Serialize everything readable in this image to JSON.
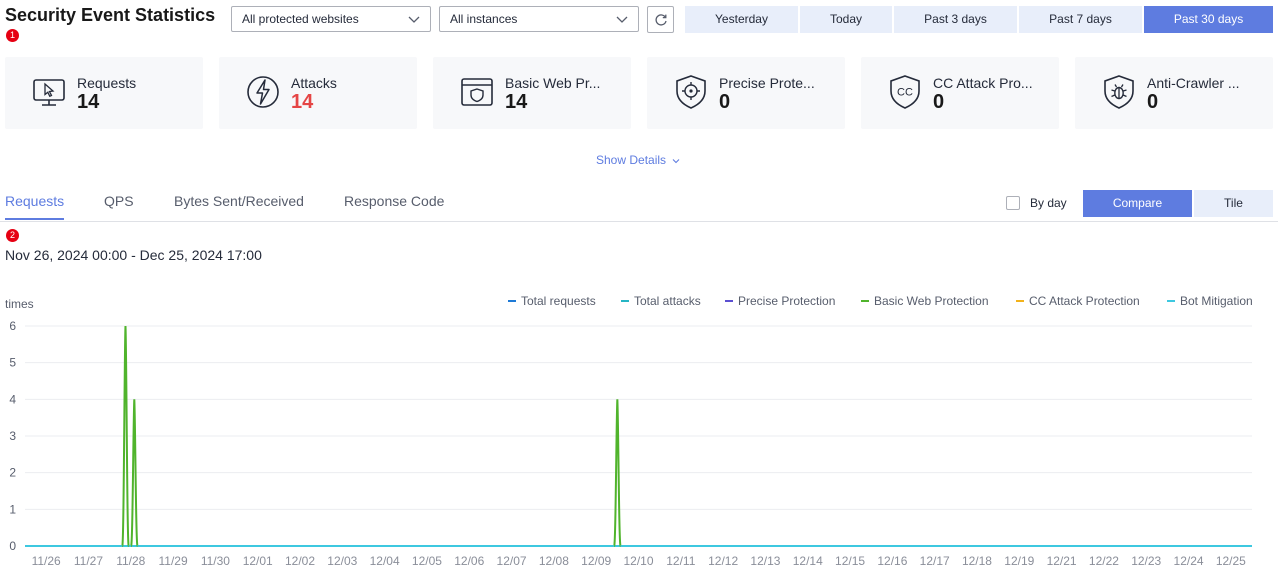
{
  "header": {
    "title": "Security Event Statistics",
    "marker1": "1",
    "website_select": "All protected websites",
    "instance_select": "All instances",
    "ranges": [
      "Yesterday",
      "Today",
      "Past 3 days",
      "Past 7 days",
      "Past 30 days"
    ],
    "active_range": "Past 30 days"
  },
  "cards": [
    {
      "label": "Requests",
      "value": "14",
      "icon": "monitor-cursor-icon"
    },
    {
      "label": "Attacks",
      "value": "14",
      "icon": "lightning-icon"
    },
    {
      "label": "Basic Web Pr...",
      "value": "14",
      "icon": "browser-shield-icon"
    },
    {
      "label": "Precise Prote...",
      "value": "0",
      "icon": "shield-target-icon"
    },
    {
      "label": "CC Attack Pro...",
      "value": "0",
      "icon": "shield-cc-icon"
    },
    {
      "label": "Anti-Crawler ...",
      "value": "0",
      "icon": "shield-bug-icon"
    }
  ],
  "show_details": "Show Details",
  "tabs": [
    "Requests",
    "QPS",
    "Bytes Sent/Received",
    "Response Code"
  ],
  "active_tab": "Requests",
  "marker2": "2",
  "by_day_label": "By day",
  "view_buttons": [
    "Compare",
    "Tile"
  ],
  "active_view": "Compare",
  "date_range": "Nov 26, 2024 00:00 - Dec 25, 2024 17:00",
  "colors": {
    "accent": "#5e7ce0",
    "danger": "#e54545",
    "series_total_requests": "#1e7ad6",
    "series_total_attacks": "#26b5c4",
    "series_precise": "#5b4fd1",
    "series_basic_web": "#50b42c",
    "series_cc": "#f2b21b",
    "series_bot": "#3ec8e0"
  },
  "chart_data": {
    "type": "line",
    "ylabel": "times",
    "ylim": [
      0,
      6
    ],
    "yticks": [
      0,
      1,
      2,
      3,
      4,
      5,
      6
    ],
    "categories": [
      "11/26",
      "11/27",
      "11/28",
      "11/29",
      "11/30",
      "12/01",
      "12/02",
      "12/03",
      "12/04",
      "12/05",
      "12/06",
      "12/07",
      "12/08",
      "12/09",
      "12/10",
      "12/11",
      "12/12",
      "12/13",
      "12/14",
      "12/15",
      "12/16",
      "12/17",
      "12/18",
      "12/19",
      "12/21",
      "12/22",
      "12/23",
      "12/24",
      "12/25"
    ],
    "legend": [
      "Total requests",
      "Total attacks",
      "Precise Protection",
      "Basic Web Protection",
      "CC Attack Protection",
      "Bot Mitigation"
    ],
    "legend_position": "top-right",
    "grid": true,
    "spikes": [
      {
        "x": "11/28 09:00",
        "value": 6
      },
      {
        "x": "11/28 14:00",
        "value": 4
      },
      {
        "x": "12/10 00:00",
        "value": 4
      }
    ],
    "series_note_values": "All other points are 0"
  }
}
